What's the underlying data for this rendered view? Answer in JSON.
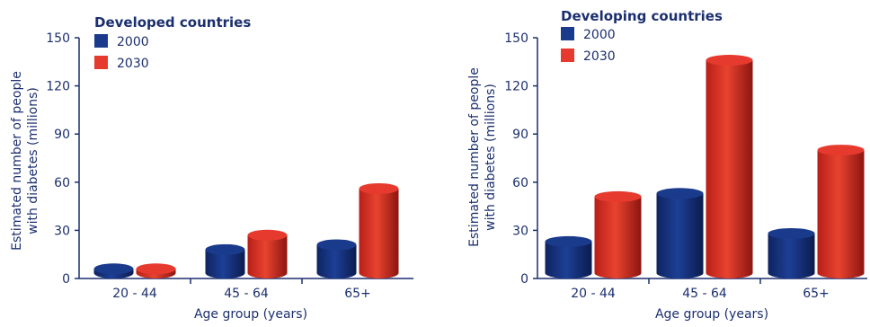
{
  "chart_data": [
    {
      "type": "bar",
      "title": "Developed countries",
      "xlabel": "Age group (years)",
      "ylabel": "Estimated number of people with diabetes (millions)",
      "ylabel_lines": [
        "Estimated number of people",
        "with diabetes (millions)"
      ],
      "categories": [
        "20 - 44",
        "45 - 64",
        "65+"
      ],
      "ylim": [
        0,
        150
      ],
      "yticks": [
        0,
        30,
        60,
        90,
        120,
        150
      ],
      "series": [
        {
          "name": "2000",
          "values": [
            6,
            18,
            21
          ],
          "color": "#1a3a8c"
        },
        {
          "name": "2030",
          "values": [
            6,
            27,
            56
          ],
          "color": "#e63a2e"
        }
      ],
      "legend_position": "top-left",
      "grid": false
    },
    {
      "type": "bar",
      "title": "Developing countries",
      "xlabel": "Age group (years)",
      "ylabel": "Estimated number of people with diabetes (millions)",
      "ylabel_lines": [
        "Estimated number of people",
        "with diabetes (millions)"
      ],
      "categories": [
        "20 - 44",
        "45 - 64",
        "65+"
      ],
      "ylim": [
        0,
        150
      ],
      "yticks": [
        0,
        30,
        60,
        90,
        120,
        150
      ],
      "series": [
        {
          "name": "2000",
          "values": [
            23,
            53,
            28
          ],
          "color": "#1a3a8c"
        },
        {
          "name": "2030",
          "values": [
            51,
            136,
            80
          ],
          "color": "#e63a2e"
        }
      ],
      "legend_position": "top-left",
      "grid": false
    }
  ]
}
